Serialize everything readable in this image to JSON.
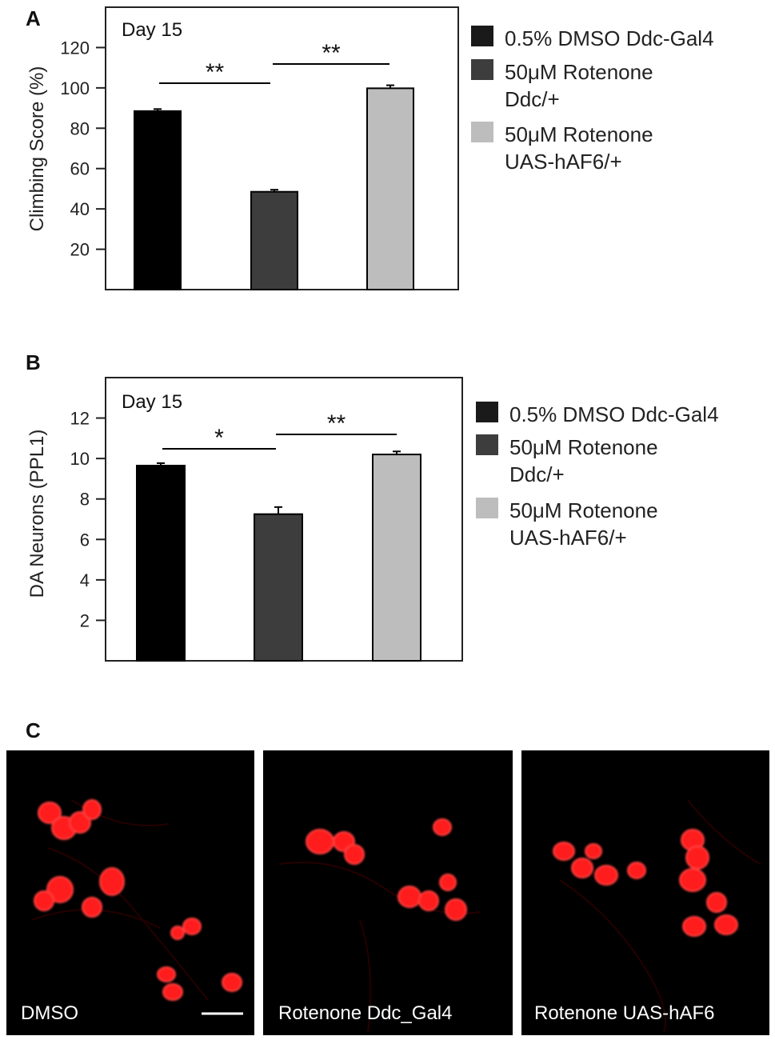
{
  "chart_data": [
    {
      "panel": "A",
      "type": "bar",
      "annotation": "Day 15",
      "ylabel": "Climbing Score (%)",
      "ylim": [
        0,
        140
      ],
      "yticks": [
        20,
        40,
        60,
        80,
        100,
        120
      ],
      "categories": [
        "0.5% DMSO Ddc-Gal4",
        "50μM Rotenone Ddc/+",
        "50μM Rotenone UAS-hAF6/+"
      ],
      "values": [
        88.5,
        48.5,
        99.8
      ],
      "errors": [
        1.0,
        1.0,
        1.5
      ],
      "colors": [
        "#000000",
        "#3d3d3d",
        "#bdbdbd"
      ],
      "legend": [
        {
          "line1": "0.5% DMSO Ddc-Gal4",
          "line2": ""
        },
        {
          "line1": "50μM Rotenone",
          "line2": "Ddc/+"
        },
        {
          "line1": "50μM Rotenone",
          "line2": "UAS-hAF6/+"
        }
      ],
      "legend_position": "right",
      "significance": [
        {
          "from": 0,
          "to": 1,
          "label": "**"
        },
        {
          "from": 1,
          "to": 2,
          "label": "**"
        }
      ]
    },
    {
      "panel": "B",
      "type": "bar",
      "annotation": "Day 15",
      "ylabel": "DA Neurons (PPL1)",
      "ylim": [
        0,
        14
      ],
      "yticks": [
        2,
        4,
        6,
        8,
        10,
        12
      ],
      "categories": [
        "0.5% DMSO Ddc-Gal4",
        "50μM Rotenone Ddc/+",
        "50μM Rotenone UAS-hAF6/+"
      ],
      "values": [
        9.65,
        7.25,
        10.2
      ],
      "errors": [
        0.12,
        0.35,
        0.15
      ],
      "colors": [
        "#000000",
        "#3d3d3d",
        "#bdbdbd"
      ],
      "legend": [
        {
          "line1": "0.5% DMSO Ddc-Gal4",
          "line2": ""
        },
        {
          "line1": "50μM Rotenone",
          "line2": "Ddc/+"
        },
        {
          "line1": "50μM Rotenone",
          "line2": "UAS-hAF6/+"
        }
      ],
      "legend_position": "right",
      "significance": [
        {
          "from": 0,
          "to": 1,
          "label": "*"
        },
        {
          "from": 1,
          "to": 2,
          "label": "**"
        }
      ]
    }
  ],
  "panel_c": {
    "letter": "C",
    "images": [
      {
        "label": "DMSO",
        "has_scale_bar": true
      },
      {
        "label": "Rotenone Ddc_Gal4",
        "has_scale_bar": false
      },
      {
        "label": "Rotenone UAS-hAF6",
        "has_scale_bar": false
      }
    ]
  }
}
